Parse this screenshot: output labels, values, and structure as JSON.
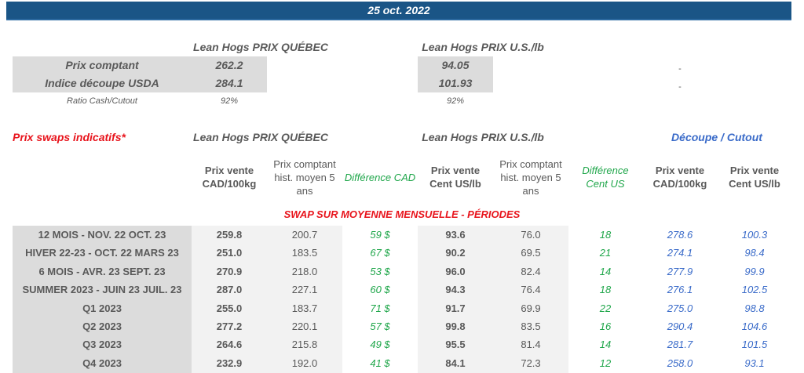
{
  "header": {
    "date": "25 oct. 2022"
  },
  "summary": {
    "quebec_title": "Lean Hogs PRIX QUÉBEC",
    "us_title": "Lean Hogs PRIX U.S./lb",
    "rows": [
      {
        "label": "Prix comptant",
        "quebec": "262.2",
        "us": "94.05",
        "extra": "-"
      },
      {
        "label": "Indice découpe USDA",
        "quebec": "284.1",
        "us": "101.93",
        "extra": "-"
      }
    ],
    "ratio": {
      "label": "Ratio Cash/Cutout",
      "quebec": "92%",
      "us": "92%"
    }
  },
  "swaps": {
    "title": "Prix swaps indicatifs*",
    "quebec_title": "Lean Hogs PRIX QUÉBEC",
    "us_title": "Lean Hogs PRIX U.S./lb",
    "cutout_title": "Découpe / Cutout",
    "columns": [
      "Prix vente CAD/100kg",
      "Prix comptant hist. moyen 5 ans",
      "Différence CAD",
      "Prix vente Cent US/lb",
      "Prix comptant hist. moyen 5 ans",
      "Différence Cent US",
      "Prix vente CAD/100kg",
      "Prix vente Cent US/lb"
    ],
    "section_title": "SWAP SUR MOYENNE MENSUELLE - PÉRIODES",
    "rows": [
      {
        "period": "12 MOIS - NOV. 22 OCT. 23",
        "v": [
          "259.8",
          "200.7",
          "59 $",
          "93.6",
          "76.0",
          "18",
          "278.6",
          "100.3"
        ]
      },
      {
        "period": "HIVER 22-23 - OCT. 22 MARS 23",
        "v": [
          "251.0",
          "183.5",
          "67 $",
          "90.2",
          "69.5",
          "21",
          "274.1",
          "98.4"
        ]
      },
      {
        "period": "6 MOIS - AVR. 23 SEPT. 23",
        "v": [
          "270.9",
          "218.0",
          "53 $",
          "96.0",
          "82.4",
          "14",
          "277.9",
          "99.9"
        ]
      },
      {
        "period": "SUMMER 2023 - JUIN 23 JUIL. 23",
        "v": [
          "287.0",
          "227.1",
          "60 $",
          "94.3",
          "76.4",
          "18",
          "276.1",
          "102.5"
        ]
      },
      {
        "period": "Q1 2023",
        "v": [
          "255.0",
          "183.7",
          "71 $",
          "91.7",
          "69.9",
          "22",
          "275.0",
          "98.8"
        ]
      },
      {
        "period": "Q2 2023",
        "v": [
          "277.2",
          "220.1",
          "57 $",
          "99.8",
          "83.5",
          "16",
          "290.4",
          "104.6"
        ]
      },
      {
        "period": "Q3 2023",
        "v": [
          "264.6",
          "215.8",
          "49 $",
          "95.5",
          "81.4",
          "14",
          "281.7",
          "101.5"
        ]
      },
      {
        "period": "Q4 2023",
        "v": [
          "232.9",
          "192.0",
          "41 $",
          "84.1",
          "72.3",
          "12",
          "258.0",
          "93.1"
        ]
      }
    ]
  },
  "colors": {
    "band": "#1a5586",
    "green": "#1fa64a",
    "blue": "#3a6bc9",
    "red": "#e8141c"
  }
}
